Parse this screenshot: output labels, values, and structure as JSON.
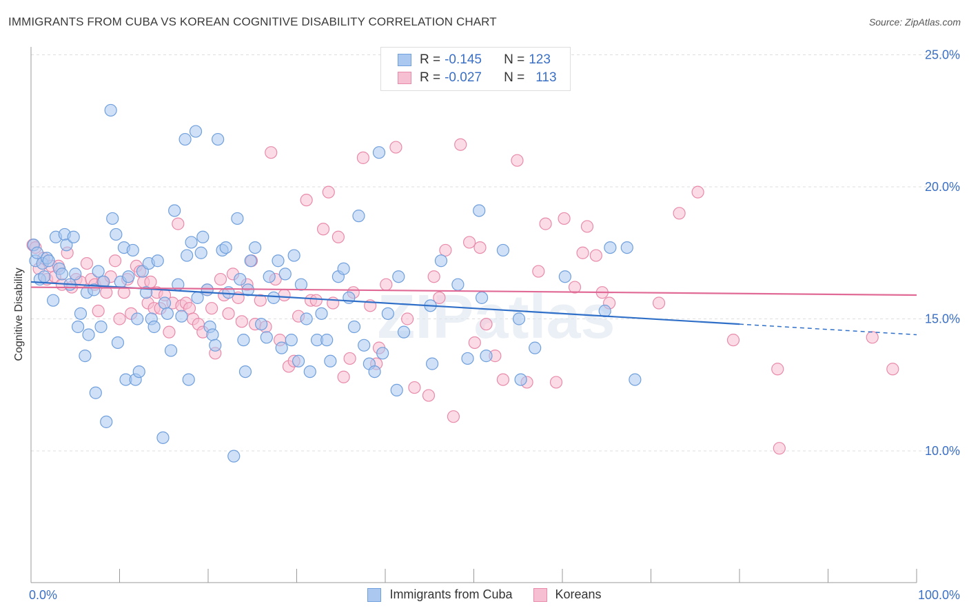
{
  "header": {
    "title": "IMMIGRANTS FROM CUBA VS KOREAN COGNITIVE DISABILITY CORRELATION CHART",
    "source": "Source: ZipAtlas.com"
  },
  "watermark": "ZIPatlas",
  "legend": {
    "rows": [
      {
        "r_label": "R =",
        "r_value": "-0.145",
        "n_label": "N =",
        "n_value": "123",
        "color": "#aac8f0",
        "border": "#6f9fdc"
      },
      {
        "r_label": "R =",
        "r_value": "-0.027",
        "n_label": "N =",
        "n_value": "113",
        "color": "#f7c0d2",
        "border": "#e88aaa"
      }
    ]
  },
  "colors": {
    "blue_fill": "#aac8f0",
    "blue_stroke": "#6f9fdc",
    "blue_line": "#2f6fc8",
    "pink_fill": "#f7c0d2",
    "pink_stroke": "#e88aaa",
    "pink_line": "#e06a95",
    "axis_label": "#3a6fc4",
    "grid": "#dddddd"
  },
  "chart_data": {
    "type": "scatter",
    "title": "IMMIGRANTS FROM CUBA VS KOREAN COGNITIVE DISABILITY CORRELATION CHART",
    "xlabel": "",
    "ylabel": "Cognitive Disability",
    "xlim": [
      0,
      100
    ],
    "ylim": [
      5,
      26
    ],
    "x_tick_labels": [
      "0.0%",
      "100.0%"
    ],
    "y_ticks": [
      10,
      15,
      20,
      25
    ],
    "y_tick_labels": [
      "10.0%",
      "15.0%",
      "20.0%",
      "25.0%"
    ],
    "grid": true,
    "legend_position": "top-center",
    "series": [
      {
        "name": "Immigrants from Cuba",
        "trend": {
          "x": [
            0,
            80
          ],
          "y": [
            16.4,
            14.8
          ],
          "dashed_extension": {
            "x": [
              80,
              100
            ],
            "y": [
              14.8,
              14.4
            ]
          }
        },
        "points": [
          [
            0.3,
            17.8
          ],
          [
            0.5,
            17.2
          ],
          [
            0.7,
            17.5
          ],
          [
            1.0,
            16.5
          ],
          [
            1.3,
            17.1
          ],
          [
            1.5,
            16.6
          ],
          [
            1.8,
            17.3
          ],
          [
            2.0,
            17.2
          ],
          [
            2.5,
            15.7
          ],
          [
            2.8,
            18.1
          ],
          [
            3.2,
            16.9
          ],
          [
            3.5,
            16.7
          ],
          [
            3.8,
            18.2
          ],
          [
            4.0,
            17.8
          ],
          [
            4.4,
            16.3
          ],
          [
            4.8,
            18.1
          ],
          [
            5.0,
            16.7
          ],
          [
            5.3,
            14.7
          ],
          [
            5.6,
            15.2
          ],
          [
            6.1,
            13.6
          ],
          [
            6.3,
            16.0
          ],
          [
            6.5,
            14.4
          ],
          [
            7.1,
            16.1
          ],
          [
            7.3,
            12.2
          ],
          [
            7.6,
            16.8
          ],
          [
            7.9,
            14.7
          ],
          [
            8.2,
            16.4
          ],
          [
            8.5,
            11.1
          ],
          [
            9.0,
            22.9
          ],
          [
            9.2,
            18.8
          ],
          [
            9.6,
            18.2
          ],
          [
            9.8,
            14.1
          ],
          [
            10.1,
            16.4
          ],
          [
            10.5,
            17.7
          ],
          [
            10.7,
            12.7
          ],
          [
            11.0,
            16.6
          ],
          [
            11.5,
            17.6
          ],
          [
            11.8,
            12.7
          ],
          [
            12.0,
            15.0
          ],
          [
            12.2,
            13.0
          ],
          [
            12.6,
            16.8
          ],
          [
            13.0,
            16.0
          ],
          [
            13.3,
            17.1
          ],
          [
            13.6,
            15.0
          ],
          [
            13.9,
            14.7
          ],
          [
            14.3,
            17.2
          ],
          [
            14.9,
            10.5
          ],
          [
            15.1,
            15.6
          ],
          [
            15.4,
            15.2
          ],
          [
            15.8,
            13.8
          ],
          [
            16.2,
            19.1
          ],
          [
            16.6,
            16.3
          ],
          [
            17.0,
            15.1
          ],
          [
            17.4,
            21.8
          ],
          [
            17.6,
            17.4
          ],
          [
            17.8,
            12.7
          ],
          [
            18.1,
            17.9
          ],
          [
            18.6,
            22.1
          ],
          [
            18.8,
            15.8
          ],
          [
            19.2,
            17.5
          ],
          [
            19.4,
            18.1
          ],
          [
            19.9,
            16.1
          ],
          [
            20.2,
            14.7
          ],
          [
            20.5,
            14.4
          ],
          [
            20.8,
            14.0
          ],
          [
            21.1,
            21.8
          ],
          [
            21.6,
            17.6
          ],
          [
            22.0,
            17.7
          ],
          [
            22.3,
            16.0
          ],
          [
            22.9,
            9.8
          ],
          [
            23.3,
            18.8
          ],
          [
            23.6,
            16.5
          ],
          [
            24.0,
            14.2
          ],
          [
            24.2,
            13.0
          ],
          [
            24.5,
            16.1
          ],
          [
            24.8,
            17.2
          ],
          [
            25.3,
            17.7
          ],
          [
            26.0,
            14.8
          ],
          [
            26.6,
            14.3
          ],
          [
            26.9,
            16.6
          ],
          [
            27.4,
            15.8
          ],
          [
            27.9,
            17.2
          ],
          [
            28.3,
            13.9
          ],
          [
            28.7,
            16.7
          ],
          [
            29.4,
            14.2
          ],
          [
            29.7,
            17.4
          ],
          [
            30.2,
            13.4
          ],
          [
            30.5,
            16.3
          ],
          [
            31.1,
            15.0
          ],
          [
            31.5,
            13.0
          ],
          [
            32.3,
            14.2
          ],
          [
            32.8,
            15.2
          ],
          [
            33.4,
            14.2
          ],
          [
            33.8,
            13.4
          ],
          [
            34.7,
            16.6
          ],
          [
            35.3,
            16.9
          ],
          [
            35.9,
            15.8
          ],
          [
            36.5,
            14.7
          ],
          [
            37.0,
            18.9
          ],
          [
            37.6,
            14.0
          ],
          [
            38.2,
            13.3
          ],
          [
            38.8,
            13.0
          ],
          [
            39.3,
            21.3
          ],
          [
            39.7,
            13.7
          ],
          [
            40.3,
            15.2
          ],
          [
            41.3,
            12.3
          ],
          [
            41.5,
            16.6
          ],
          [
            42.1,
            14.5
          ],
          [
            45.1,
            15.5
          ],
          [
            45.3,
            13.3
          ],
          [
            46.3,
            17.2
          ],
          [
            48.2,
            16.3
          ],
          [
            49.3,
            13.5
          ],
          [
            50.6,
            19.1
          ],
          [
            50.9,
            15.8
          ],
          [
            51.4,
            13.6
          ],
          [
            53.3,
            17.6
          ],
          [
            55.1,
            15.0
          ],
          [
            55.3,
            12.7
          ],
          [
            56.9,
            13.9
          ],
          [
            60.3,
            16.6
          ],
          [
            64.8,
            15.3
          ],
          [
            65.4,
            17.7
          ],
          [
            67.3,
            17.7
          ],
          [
            68.2,
            12.7
          ]
        ]
      },
      {
        "name": "Koreans",
        "trend": {
          "x": [
            0,
            100
          ],
          "y": [
            16.2,
            15.9
          ]
        },
        "points": [
          [
            0.2,
            17.8
          ],
          [
            0.5,
            17.7
          ],
          [
            0.9,
            16.9
          ],
          [
            1.4,
            17.3
          ],
          [
            1.8,
            16.5
          ],
          [
            2.3,
            17.0
          ],
          [
            2.7,
            16.6
          ],
          [
            3.1,
            17.0
          ],
          [
            3.5,
            16.3
          ],
          [
            4.1,
            17.5
          ],
          [
            4.6,
            16.2
          ],
          [
            5.1,
            16.5
          ],
          [
            5.6,
            16.4
          ],
          [
            6.3,
            17.1
          ],
          [
            6.8,
            16.5
          ],
          [
            7.2,
            16.3
          ],
          [
            7.6,
            15.3
          ],
          [
            8.1,
            16.4
          ],
          [
            8.5,
            16.0
          ],
          [
            9.0,
            16.6
          ],
          [
            9.5,
            17.2
          ],
          [
            10.0,
            15.0
          ],
          [
            10.5,
            16.0
          ],
          [
            10.9,
            16.5
          ],
          [
            11.3,
            15.2
          ],
          [
            11.9,
            17.0
          ],
          [
            12.3,
            16.8
          ],
          [
            12.7,
            16.4
          ],
          [
            13.2,
            15.6
          ],
          [
            13.5,
            16.4
          ],
          [
            13.9,
            15.4
          ],
          [
            14.2,
            16.0
          ],
          [
            14.6,
            15.4
          ],
          [
            15.1,
            15.9
          ],
          [
            15.6,
            14.5
          ],
          [
            16.0,
            15.6
          ],
          [
            16.6,
            18.6
          ],
          [
            17.0,
            15.5
          ],
          [
            17.5,
            15.6
          ],
          [
            17.9,
            15.4
          ],
          [
            18.3,
            15.0
          ],
          [
            18.9,
            14.8
          ],
          [
            19.4,
            14.5
          ],
          [
            19.9,
            16.1
          ],
          [
            20.4,
            15.4
          ],
          [
            20.8,
            13.7
          ],
          [
            21.4,
            16.5
          ],
          [
            21.8,
            15.9
          ],
          [
            22.3,
            15.2
          ],
          [
            22.8,
            16.7
          ],
          [
            23.4,
            15.8
          ],
          [
            23.8,
            14.9
          ],
          [
            24.4,
            16.3
          ],
          [
            24.9,
            17.2
          ],
          [
            25.3,
            14.8
          ],
          [
            25.9,
            15.7
          ],
          [
            26.5,
            14.7
          ],
          [
            27.1,
            21.3
          ],
          [
            27.6,
            16.5
          ],
          [
            28.1,
            14.2
          ],
          [
            28.6,
            15.9
          ],
          [
            29.1,
            13.2
          ],
          [
            29.7,
            13.4
          ],
          [
            30.2,
            15.1
          ],
          [
            31.1,
            19.5
          ],
          [
            31.6,
            15.7
          ],
          [
            32.2,
            15.7
          ],
          [
            33.0,
            18.4
          ],
          [
            33.6,
            19.8
          ],
          [
            34.1,
            15.6
          ],
          [
            34.7,
            18.1
          ],
          [
            35.3,
            12.8
          ],
          [
            36.0,
            13.5
          ],
          [
            36.4,
            16.0
          ],
          [
            37.5,
            21.1
          ],
          [
            38.3,
            15.5
          ],
          [
            39.0,
            13.3
          ],
          [
            39.3,
            13.9
          ],
          [
            40.1,
            16.3
          ],
          [
            41.2,
            21.5
          ],
          [
            42.5,
            15.0
          ],
          [
            43.3,
            12.4
          ],
          [
            44.9,
            12.1
          ],
          [
            45.5,
            16.6
          ],
          [
            46.1,
            15.8
          ],
          [
            46.8,
            17.6
          ],
          [
            47.7,
            11.3
          ],
          [
            48.5,
            21.6
          ],
          [
            49.5,
            17.9
          ],
          [
            50.1,
            14.1
          ],
          [
            50.7,
            17.7
          ],
          [
            51.4,
            14.8
          ],
          [
            52.4,
            13.6
          ],
          [
            53.3,
            12.7
          ],
          [
            54.9,
            21.0
          ],
          [
            56.0,
            12.6
          ],
          [
            57.3,
            16.8
          ],
          [
            58.1,
            18.6
          ],
          [
            59.3,
            12.6
          ],
          [
            60.2,
            18.8
          ],
          [
            61.4,
            16.2
          ],
          [
            62.3,
            17.5
          ],
          [
            62.8,
            18.5
          ],
          [
            63.8,
            17.4
          ],
          [
            64.5,
            16.0
          ],
          [
            65.3,
            15.6
          ],
          [
            70.9,
            15.6
          ],
          [
            73.2,
            19.0
          ],
          [
            75.3,
            19.8
          ],
          [
            79.3,
            14.2
          ],
          [
            84.3,
            13.1
          ],
          [
            84.5,
            10.1
          ],
          [
            95.0,
            14.3
          ],
          [
            97.3,
            13.1
          ]
        ]
      }
    ]
  },
  "bottom_legend": [
    {
      "label": "Immigrants from Cuba"
    },
    {
      "label": "Koreans"
    }
  ]
}
